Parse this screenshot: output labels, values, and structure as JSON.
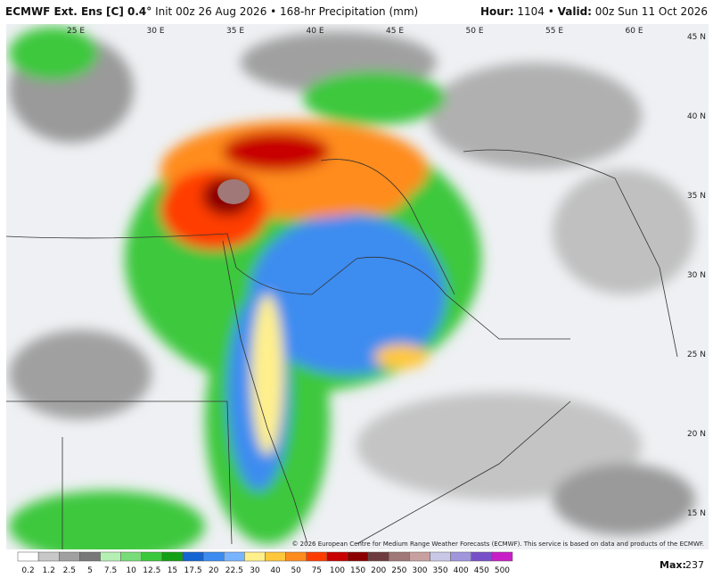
{
  "header": {
    "model": "ECMWF Ext. Ens [C] 0.4°",
    "init": "Init 00z 26 Aug 2026",
    "product": "168-hr Precipitation (mm)",
    "hour_label": "Hour:",
    "hour": "1104",
    "valid_label": "Valid:",
    "valid": "00z Sun 11 Oct 2026"
  },
  "map": {
    "lon_labels": [
      "25 E",
      "30 E",
      "35 E",
      "40 E",
      "45 E",
      "50 E",
      "55 E",
      "60 E"
    ],
    "lat_labels": [
      "45 N",
      "40 N",
      "35 N",
      "30 N",
      "25 N",
      "20 N",
      "15 N"
    ],
    "copyright": "© 2026 European Centre for Medium Range Weather Forecasts (ECMWF). This service is based on data and products of the ECMWF."
  },
  "colorbar": {
    "labels": [
      "0.2",
      "1.2",
      "2.5",
      "5",
      "7.5",
      "10",
      "12.5",
      "15",
      "17.5",
      "20",
      "22.5",
      "30",
      "40",
      "50",
      "75",
      "100",
      "150",
      "200",
      "250",
      "300",
      "350",
      "400",
      "450",
      "500"
    ],
    "colors": [
      "#ffffff",
      "#c8c8c8",
      "#a0a0a0",
      "#787878",
      "#b4f0b4",
      "#78dc78",
      "#3cc83c",
      "#14a014",
      "#1464d2",
      "#3c8cf0",
      "#78b4ff",
      "#fff08c",
      "#ffc83c",
      "#ff8c1e",
      "#ff3c00",
      "#c80000",
      "#8c0000",
      "#6e3c3c",
      "#a07878",
      "#c8a0a0",
      "#c8c8e6",
      "#a096dc",
      "#7850c8",
      "#c81ec8"
    ]
  },
  "max_label": "Max:",
  "max": "237"
}
